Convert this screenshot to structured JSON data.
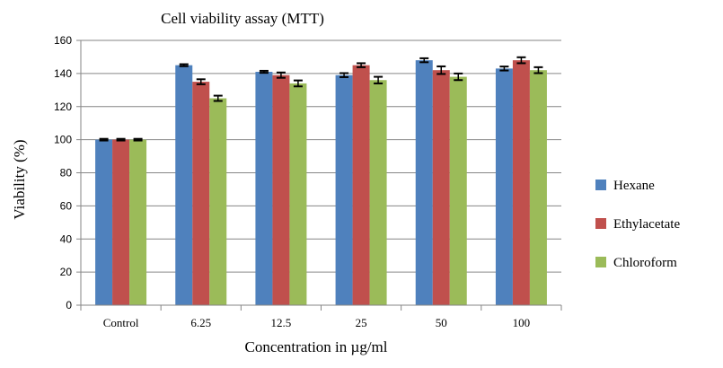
{
  "chart_data": {
    "type": "bar",
    "title": "Cell viability assay (MTT)",
    "xlabel": "Concentration in µg/ml",
    "ylabel": "Viability (%)",
    "ylim": [
      0,
      160
    ],
    "yticks": [
      0,
      20,
      40,
      60,
      80,
      100,
      120,
      140,
      160
    ],
    "categories": [
      "Control",
      "6.25",
      "12.5",
      "25",
      "50",
      "100"
    ],
    "series": [
      {
        "name": "Hexane",
        "color": "#4F81BD",
        "values": [
          100,
          145,
          141,
          139,
          148,
          143
        ],
        "errors": [
          0.5,
          0.6,
          0.6,
          1.2,
          1.2,
          1.2
        ]
      },
      {
        "name": "Ethylacetate",
        "color": "#C0504D",
        "values": [
          100,
          135,
          139,
          145,
          142,
          148
        ],
        "errors": [
          0.5,
          1.5,
          1.6,
          1.2,
          2.3,
          1.8
        ]
      },
      {
        "name": "Chloroform",
        "color": "#9BBB59",
        "values": [
          100,
          125,
          134,
          136,
          138,
          142
        ],
        "errors": [
          0.5,
          1.6,
          1.8,
          2.0,
          2.0,
          1.8
        ]
      }
    ],
    "grid": true,
    "legend_position": "right"
  }
}
